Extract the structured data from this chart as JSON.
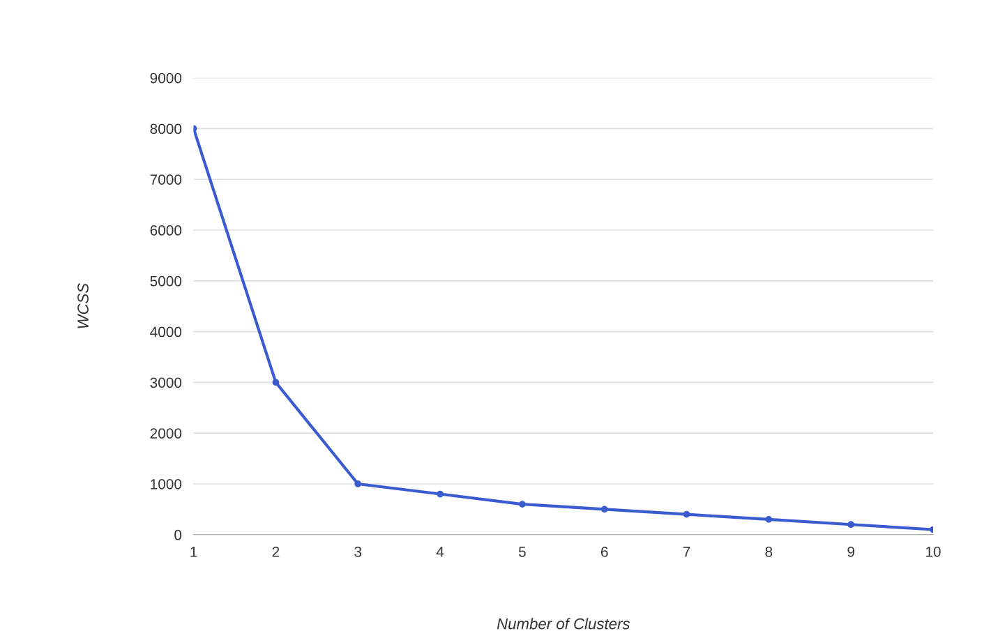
{
  "chart_data": {
    "type": "line",
    "xlabel": "Number of Clusters",
    "ylabel": "WCSS",
    "x": [
      1,
      2,
      3,
      4,
      5,
      6,
      7,
      8,
      9,
      10
    ],
    "series": [
      {
        "color": "#3b5bd0",
        "values": [
          8000,
          3000,
          1000,
          800,
          600,
          500,
          400,
          300,
          200,
          100
        ]
      }
    ],
    "xlim": [
      1,
      10
    ],
    "xticks": [
      1,
      2,
      3,
      4,
      5,
      6,
      7,
      8,
      9,
      10
    ],
    "ylim": [
      0,
      9000
    ],
    "yticks": [
      0,
      1000,
      2000,
      3000,
      4000,
      5000,
      6000,
      7000,
      8000,
      9000
    ],
    "grid": "y",
    "marker": "circle",
    "line_style": "solid"
  }
}
